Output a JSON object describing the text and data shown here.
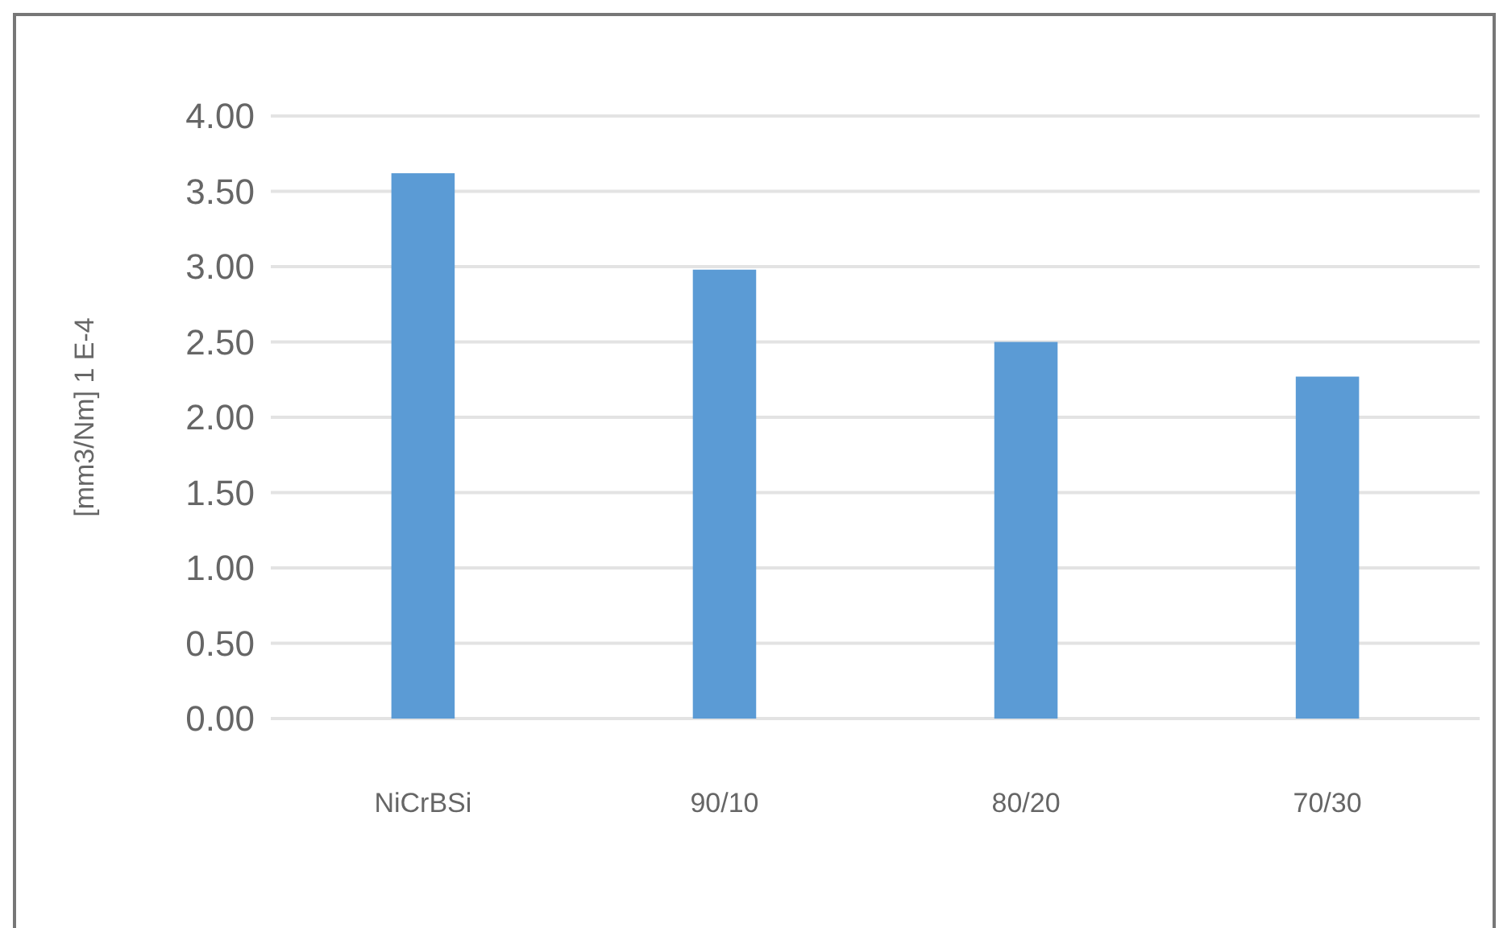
{
  "chart_data": {
    "type": "bar",
    "ylabel": "[mm3/Nm] 1 E-4",
    "categories": [
      "NiCrBSi",
      "90/10",
      "80/20",
      "70/30"
    ],
    "values": [
      3.62,
      2.98,
      2.5,
      2.27
    ],
    "color": "#5b9bd5",
    "ylim": [
      0,
      4
    ],
    "yticks": [
      {
        "value": 0,
        "label": "0.00"
      },
      {
        "value": 0.5,
        "label": "0.50"
      },
      {
        "value": 1,
        "label": "1.00"
      },
      {
        "value": 1.5,
        "label": "1.50"
      },
      {
        "value": 2,
        "label": "2.00"
      },
      {
        "value": 2.5,
        "label": "2.50"
      },
      {
        "value": 3,
        "label": "3.00"
      },
      {
        "value": 3.5,
        "label": "3.50"
      },
      {
        "value": 4,
        "label": "4.00"
      }
    ],
    "grid": "y"
  }
}
